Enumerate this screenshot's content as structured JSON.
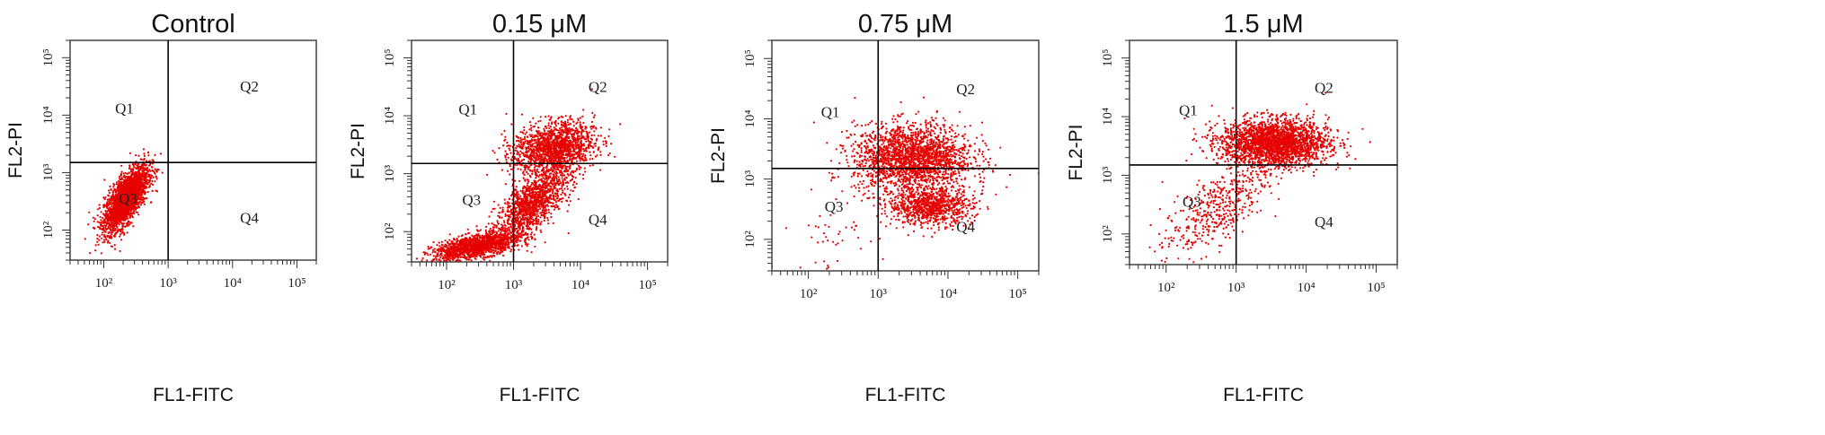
{
  "figure": {
    "xlabel": "FL1-FITC",
    "ylabel": "FL2-PI",
    "point_color": "#e60000",
    "line_color": "#000000",
    "tick_labels": [
      "10²",
      "10³",
      "10⁴",
      "10⁵"
    ],
    "tick_exponent_values": [
      2,
      3,
      4,
      5
    ]
  },
  "chart_data": [
    {
      "type": "scatter",
      "title": "Control",
      "xlabel": "FL1-FITC",
      "ylabel": "FL2-PI",
      "xscale": "log",
      "yscale": "log",
      "xlim": [
        30,
        200000
      ],
      "ylim": [
        30,
        200000
      ],
      "quadrant_gate": {
        "x": 1000,
        "y": 1500
      },
      "quadrant_labels": [
        "Q1",
        "Q2",
        "Q3",
        "Q4"
      ],
      "populations": [
        {
          "center_log": [
            2.35,
            2.55
          ],
          "spread_log": [
            0.17,
            0.28
          ],
          "corr": 0.7,
          "count": 2600
        }
      ]
    },
    {
      "type": "scatter",
      "title": "0.15 μM",
      "xlabel": "FL1-FITC",
      "ylabel": "FL2-PI",
      "xscale": "log",
      "yscale": "log",
      "xlim": [
        30,
        200000
      ],
      "ylim": [
        30,
        200000
      ],
      "quadrant_gate": {
        "x": 1000,
        "y": 1500
      },
      "quadrant_labels": [
        "Q1",
        "Q2",
        "Q3",
        "Q4"
      ],
      "populations": [
        {
          "center_log": [
            2.45,
            1.75
          ],
          "spread_log": [
            0.32,
            0.12
          ],
          "corr": 0.6,
          "count": 1500
        },
        {
          "center_log": [
            3.3,
            2.5
          ],
          "spread_log": [
            0.28,
            0.32
          ],
          "corr": 0.7,
          "count": 1300
        },
        {
          "center_log": [
            3.6,
            3.45
          ],
          "spread_log": [
            0.3,
            0.22
          ],
          "corr": 0.2,
          "count": 1500
        }
      ]
    },
    {
      "type": "scatter",
      "title": "0.75 μM",
      "xlabel": "FL1-FITC",
      "ylabel": "FL2-PI",
      "xscale": "log",
      "yscale": "log",
      "xlim": [
        30,
        200000
      ],
      "ylim": [
        30,
        200000
      ],
      "quadrant_gate": {
        "x": 1000,
        "y": 1500
      },
      "quadrant_labels": [
        "Q1",
        "Q2",
        "Q3",
        "Q4"
      ],
      "populations": [
        {
          "center_log": [
            3.5,
            3.35
          ],
          "spread_log": [
            0.42,
            0.28
          ],
          "corr": 0.0,
          "count": 2100
        },
        {
          "center_log": [
            3.75,
            2.55
          ],
          "spread_log": [
            0.3,
            0.15
          ],
          "corr": 0.0,
          "count": 900
        },
        {
          "center_log": [
            2.6,
            2.1
          ],
          "spread_log": [
            0.5,
            0.5
          ],
          "corr": 0.3,
          "count": 70
        }
      ]
    },
    {
      "type": "scatter",
      "title": "1.5 μM",
      "xlabel": "FL1-FITC",
      "ylabel": "FL2-PI",
      "xscale": "log",
      "yscale": "log",
      "xlim": [
        30,
        200000
      ],
      "ylim": [
        30,
        200000
      ],
      "quadrant_gate": {
        "x": 1000,
        "y": 1500
      },
      "quadrant_labels": [
        "Q1",
        "Q2",
        "Q3",
        "Q4"
      ],
      "populations": [
        {
          "center_log": [
            3.55,
            3.55
          ],
          "spread_log": [
            0.38,
            0.2
          ],
          "corr": 0.0,
          "count": 2400
        },
        {
          "center_log": [
            2.7,
            2.4
          ],
          "spread_log": [
            0.38,
            0.42
          ],
          "corr": 0.7,
          "count": 450
        }
      ]
    }
  ]
}
